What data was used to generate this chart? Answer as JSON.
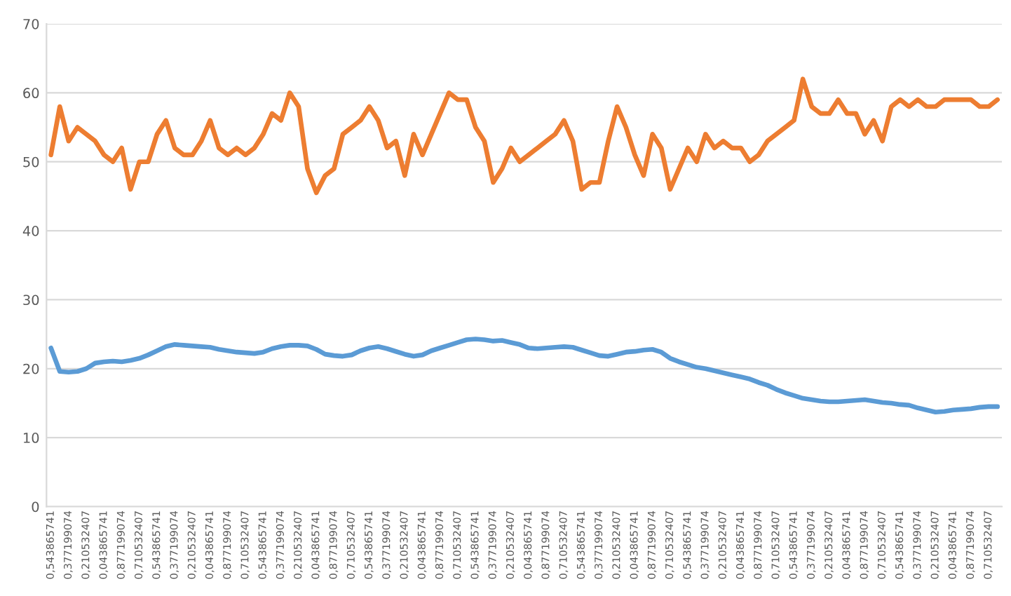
{
  "chart_data": {
    "type": "line",
    "categories": [
      "0,543865741",
      null,
      "0,377199074",
      null,
      "0,210532407",
      null,
      "0,043865741",
      null,
      "0,877199074",
      null,
      "0,710532407",
      null,
      "0,543865741",
      null,
      "0,377199074",
      null,
      "0,210532407",
      null,
      "0,043865741",
      null,
      "0,877199074",
      null,
      "0,710532407",
      null,
      "0,543865741",
      null,
      "0,377199074",
      null,
      "0,210532407",
      null,
      "0,043865741",
      null,
      "0,877199074",
      null,
      "0,710532407",
      null,
      "0,543865741",
      null,
      "0,377199074",
      null,
      "0,210532407",
      null,
      "0,043865741",
      null,
      "0,877199074",
      null,
      "0,710532407",
      null,
      "0,543865741",
      null,
      "0,377199074",
      null,
      "0,210532407",
      null,
      "0,043865741",
      null,
      "0,877199074",
      null,
      "0,710532407",
      null,
      "0,543865741",
      null,
      "0,377199074",
      null,
      "0,210532407",
      null,
      "0,043865741",
      null,
      "0,877199074",
      null,
      "0,710532407",
      null,
      "0,543865741",
      null,
      "0,377199074",
      null,
      "0,210532407",
      null,
      "0,043865741",
      null,
      "0,877199074",
      null,
      "0,710532407",
      null,
      "0,543865741",
      null,
      "0,377199074",
      null,
      "0,210532407",
      null,
      "0,043865741",
      null,
      "0,877199074",
      null,
      "0,710532407",
      null,
      "0,543865741",
      null,
      "0,377199074",
      null,
      "0,210532407",
      null,
      "0,043865741",
      null,
      "0,877199074",
      null,
      "0,710532407",
      null
    ],
    "series": [
      {
        "color": "#5b9bd5",
        "values": [
          23,
          19.6,
          19.5,
          19.6,
          20,
          20.8,
          21,
          21.1,
          21,
          21.2,
          21.5,
          22,
          22.6,
          23.2,
          23.5,
          23.4,
          23.3,
          23.2,
          23.1,
          22.8,
          22.6,
          22.4,
          22.3,
          22.2,
          22.4,
          22.9,
          23.2,
          23.4,
          23.4,
          23.3,
          22.8,
          22.1,
          21.9,
          21.8,
          22,
          22.6,
          23,
          23.2,
          22.9,
          22.5,
          22.1,
          21.8,
          22,
          22.6,
          23,
          23.4,
          23.8,
          24.2,
          24.3,
          24.2,
          24,
          24.1,
          23.8,
          23.5,
          23,
          22.9,
          23,
          23.1,
          23.2,
          23.1,
          22.7,
          22.3,
          21.9,
          21.8,
          22.1,
          22.4,
          22.5,
          22.7,
          22.8,
          22.4,
          21.5,
          21,
          20.6,
          20.2,
          20,
          19.7,
          19.4,
          19.1,
          18.8,
          18.5,
          18,
          17.6,
          17,
          16.5,
          16.1,
          15.7,
          15.5,
          15.3,
          15.2,
          15.2,
          15.3,
          15.4,
          15.5,
          15.3,
          15.1,
          15,
          14.8,
          14.7,
          14.3,
          14,
          13.7,
          13.8,
          14,
          14.1,
          14.2,
          14.4,
          14.5,
          14.5
        ]
      },
      {
        "color": "#ed7d31",
        "values": [
          51,
          58,
          53,
          55,
          54,
          53,
          51,
          50,
          52,
          46,
          50,
          50,
          54,
          56,
          52,
          51,
          51,
          53,
          56,
          52,
          51,
          52,
          51,
          52,
          54,
          57,
          56,
          60,
          58,
          49,
          45.5,
          48,
          49,
          54,
          55,
          56,
          58,
          56,
          52,
          53,
          48,
          54,
          51,
          54,
          57,
          60,
          59,
          59,
          55,
          53,
          47,
          49,
          52,
          50,
          51,
          52,
          53,
          54,
          56,
          53,
          46,
          47,
          47,
          53,
          58,
          55,
          51,
          48,
          54,
          52,
          46,
          49,
          52,
          50,
          54,
          52,
          53,
          52,
          52,
          50,
          51,
          53,
          54,
          55,
          56,
          62,
          58,
          57,
          57,
          59,
          57,
          57,
          54,
          56,
          53,
          58,
          59,
          58,
          59,
          58,
          58,
          59,
          59,
          59,
          59,
          58,
          58,
          59
        ]
      }
    ],
    "ylim": [
      0,
      70
    ],
    "yticks": [
      0,
      10,
      20,
      30,
      40,
      50,
      60,
      70
    ],
    "grid": "y",
    "marker": "none",
    "line_style": "solid"
  }
}
